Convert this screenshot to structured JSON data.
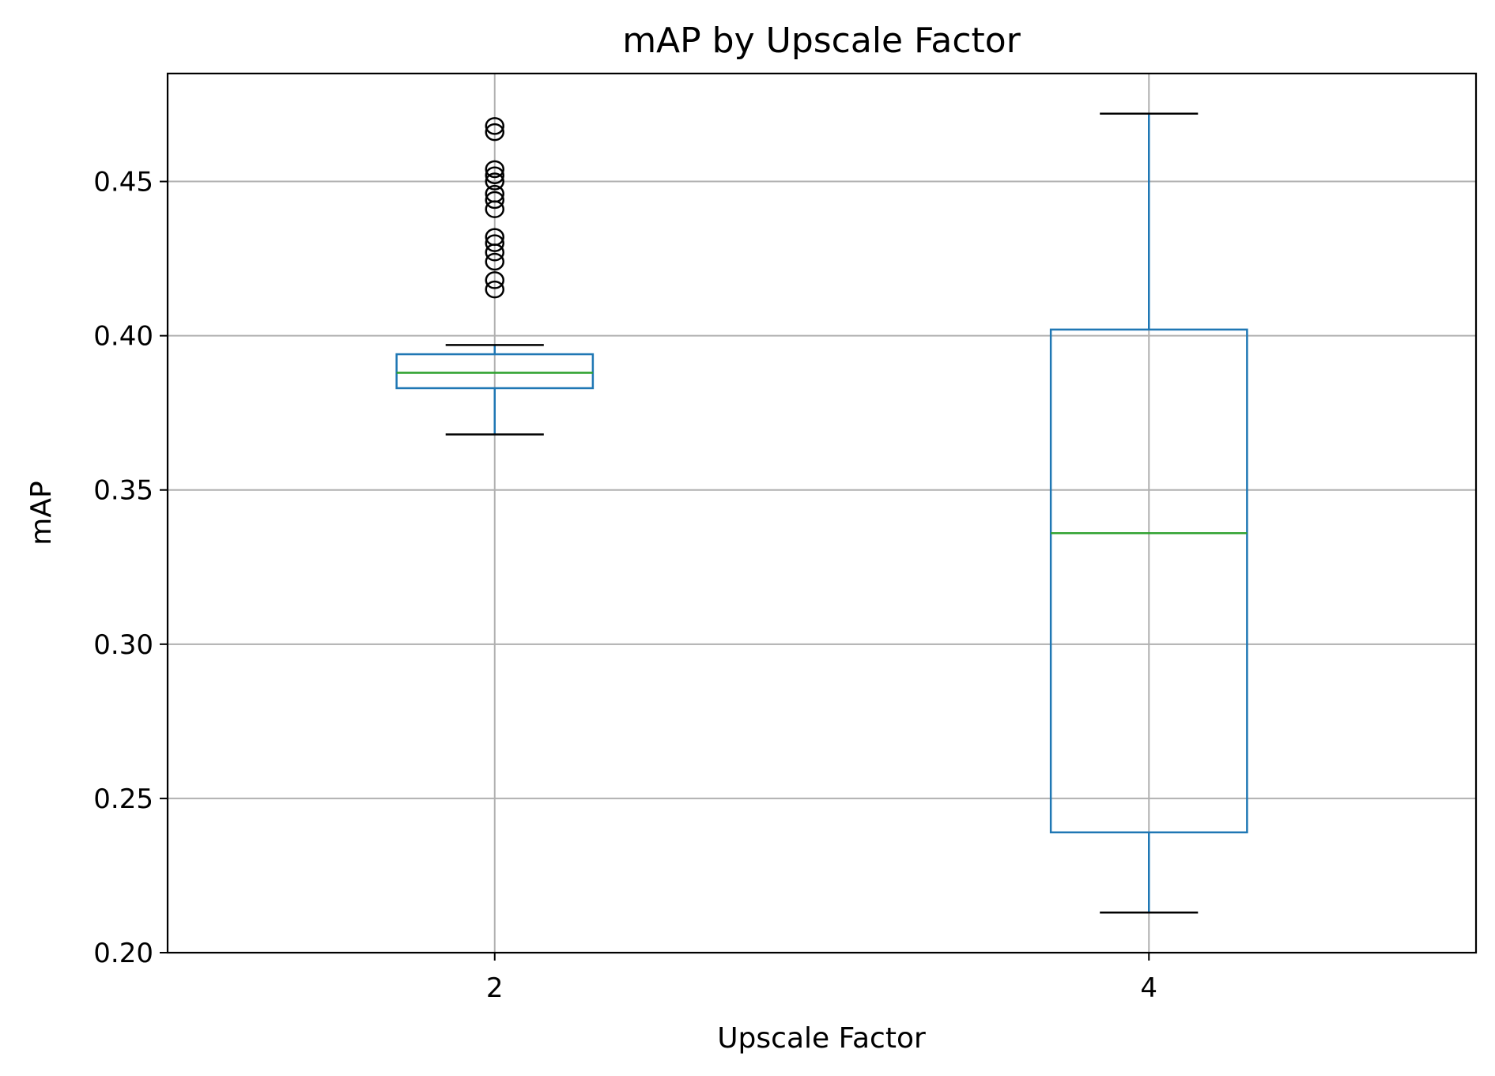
{
  "chart_data": {
    "type": "box",
    "title": "mAP by Upscale Factor",
    "xlabel": "Upscale Factor",
    "ylabel": "mAP",
    "categories": [
      "2",
      "4"
    ],
    "ylim": [
      0.2,
      0.485
    ],
    "yticks": [
      0.2,
      0.25,
      0.3,
      0.35,
      0.4,
      0.45
    ],
    "ytick_labels": [
      "0.20",
      "0.25",
      "0.30",
      "0.35",
      "0.40",
      "0.45"
    ],
    "grid": true,
    "boxes": [
      {
        "category": "2",
        "whisker_low": 0.368,
        "q1": 0.383,
        "median": 0.388,
        "q3": 0.394,
        "whisker_high": 0.397,
        "outliers": [
          0.415,
          0.418,
          0.424,
          0.427,
          0.43,
          0.432,
          0.441,
          0.444,
          0.446,
          0.45,
          0.452,
          0.454,
          0.466,
          0.468
        ]
      },
      {
        "category": "4",
        "whisker_low": 0.213,
        "q1": 0.239,
        "median": 0.336,
        "q3": 0.402,
        "whisker_high": 0.472,
        "outliers": []
      }
    ],
    "colors": {
      "box": "#1f77b4",
      "median": "#2ca02c",
      "whisker_cap": "#000000",
      "outlier": "#000000",
      "grid": "#b0b0b0"
    }
  }
}
